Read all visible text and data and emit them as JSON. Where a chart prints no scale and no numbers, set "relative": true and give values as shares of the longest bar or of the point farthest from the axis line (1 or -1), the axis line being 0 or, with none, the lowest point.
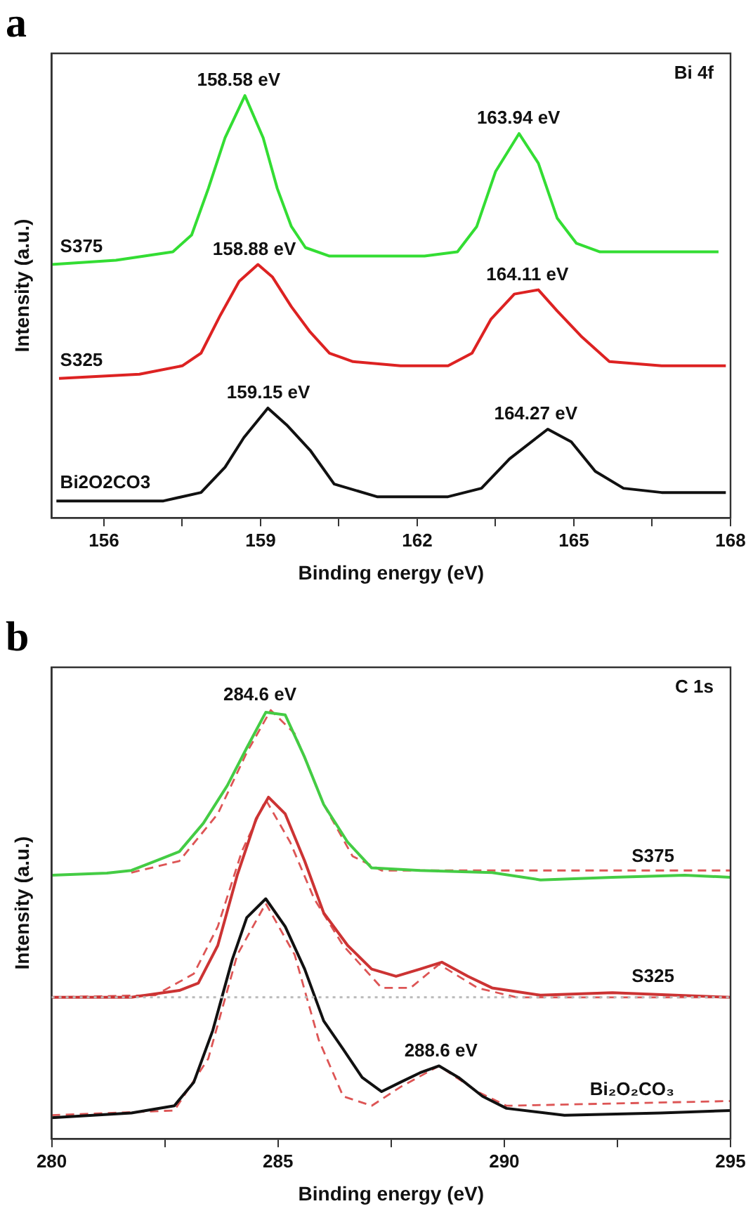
{
  "chart_data": [
    {
      "type": "line",
      "title": "a",
      "xlabel": "Binding energy (eV)",
      "ylabel": "Intensity (a.u.)",
      "relative": true,
      "xlim": [
        155,
        168
      ],
      "xticks": [
        156,
        {
          "value": 157.5,
          "label": null
        },
        159,
        {
          "value": 160.5,
          "label": null
        },
        162,
        {
          "value": 163.5,
          "label": null
        },
        165,
        {
          "value": 166.5,
          "label": null
        },
        168
      ],
      "grid": false,
      "legend": false,
      "marker": "none",
      "line_style": "solid",
      "annotations": [
        "Bi 4f",
        {
          "text": "158.58 eV",
          "x": 158.58,
          "y": 1.0
        },
        {
          "text": "163.94 eV",
          "x": 163.94,
          "y": 0.91
        },
        {
          "text": "158.88 eV",
          "x": 158.88,
          "y": 0.6
        },
        {
          "text": "164.11 eV",
          "x": 164.11,
          "y": 0.54
        },
        {
          "text": "159.15 eV",
          "x": 159.15,
          "y": 0.26
        },
        {
          "text": "164.27 eV",
          "x": 164.27,
          "y": 0.21
        }
      ],
      "series": [
        {
          "name": "S375",
          "color": "#33dd33",
          "x": [
            155,
            156.23,
            157.32,
            157.68,
            158,
            158.32,
            158.7,
            159.05,
            159.32,
            159.59,
            159.86,
            160.32,
            161.23,
            162.14,
            162.77,
            163.14,
            163.5,
            163.95,
            164.32,
            164.68,
            165.05,
            165.5,
            166.68,
            167.77
          ],
          "values": [
            0.6,
            0.61,
            0.63,
            0.67,
            0.78,
            0.9,
            1.0,
            0.9,
            0.78,
            0.69,
            0.64,
            0.62,
            0.62,
            0.62,
            0.63,
            0.69,
            0.82,
            0.91,
            0.84,
            0.71,
            0.65,
            0.63,
            0.63,
            0.63
          ]
        },
        {
          "name": "S325",
          "color": "#dd2222",
          "x": [
            155.14,
            156.68,
            157.5,
            157.86,
            158.23,
            158.59,
            158.95,
            159.23,
            159.59,
            159.95,
            160.32,
            160.77,
            161.68,
            162.59,
            163.05,
            163.41,
            163.86,
            164.32,
            164.68,
            165.14,
            165.68,
            166.68,
            167.91
          ],
          "values": [
            0.33,
            0.34,
            0.36,
            0.39,
            0.48,
            0.56,
            0.6,
            0.57,
            0.5,
            0.44,
            0.39,
            0.37,
            0.36,
            0.36,
            0.39,
            0.47,
            0.53,
            0.54,
            0.49,
            0.43,
            0.37,
            0.36,
            0.36
          ]
        },
        {
          "name": "Bi2O2CO3",
          "color": "#111111",
          "x": [
            155.09,
            157.14,
            157.86,
            158.32,
            158.68,
            159.14,
            159.5,
            159.95,
            160.41,
            161.23,
            162.59,
            163.23,
            163.77,
            164.5,
            164.95,
            165.41,
            165.95,
            166.68,
            167.91
          ],
          "values": [
            0.04,
            0.04,
            0.06,
            0.12,
            0.19,
            0.26,
            0.22,
            0.16,
            0.08,
            0.05,
            0.05,
            0.07,
            0.14,
            0.21,
            0.18,
            0.11,
            0.07,
            0.06,
            0.06
          ]
        }
      ]
    },
    {
      "type": "line",
      "title": "b",
      "xlabel": "Binding energy (eV)",
      "ylabel": "Intensity (a.u.)",
      "relative": true,
      "xlim": [
        280,
        295
      ],
      "xticks": [
        280,
        {
          "value": 282.5,
          "label": null
        },
        285,
        {
          "value": 287.5,
          "label": null
        },
        290,
        {
          "value": 292.5,
          "label": null
        },
        295
      ],
      "grid": false,
      "legend": false,
      "marker": "none",
      "line_style": "solid",
      "annotations": [
        "C 1s",
        {
          "text": "284.6 eV",
          "x": 284.6,
          "y": 1.0
        },
        {
          "text": "288.6 eV",
          "x": 288.6,
          "y": 0.17
        }
      ],
      "ref_lines": [
        {
          "axis": "y",
          "value": 0.33,
          "color": "#bbbbbb",
          "line_style": "dotted"
        }
      ],
      "series": [
        {
          "name": "S375",
          "color": "#44cc44",
          "x": [
            280,
            281.22,
            281.76,
            282.29,
            282.82,
            283.35,
            283.88,
            284.31,
            284.73,
            285.16,
            285.59,
            286.01,
            286.54,
            287.07,
            288.14,
            289.73,
            290.8,
            292.39,
            293.99,
            295
          ],
          "values": [
            0.615,
            0.62,
            0.626,
            0.648,
            0.67,
            0.736,
            0.824,
            0.912,
            0.995,
            0.989,
            0.89,
            0.78,
            0.692,
            0.632,
            0.626,
            0.621,
            0.604,
            0.61,
            0.615,
            0.61
          ]
        },
        {
          "color": "#dd5555",
          "line_style": "dashed",
          "x": [
            281.76,
            282.82,
            283.67,
            284.31,
            284.84,
            285.37,
            286.01,
            286.65,
            287.29,
            295
          ],
          "values": [
            0.621,
            0.648,
            0.758,
            0.901,
            1.0,
            0.945,
            0.78,
            0.659,
            0.626,
            0.626
          ]
        },
        {
          "name": "S325",
          "color": "#cc3333",
          "x": [
            280,
            281.76,
            282.82,
            283.24,
            283.67,
            284.1,
            284.52,
            284.79,
            285.16,
            285.59,
            286.01,
            286.54,
            287.07,
            287.61,
            288.14,
            288.62,
            289.2,
            289.73,
            290.8,
            292.39,
            295
          ],
          "values": [
            0.33,
            0.33,
            0.346,
            0.363,
            0.451,
            0.615,
            0.747,
            0.797,
            0.758,
            0.648,
            0.527,
            0.451,
            0.396,
            0.379,
            0.396,
            0.412,
            0.379,
            0.352,
            0.335,
            0.341,
            0.33
          ]
        },
        {
          "color": "#dd5555",
          "line_style": "dashed",
          "x": [
            280,
            282.29,
            283.14,
            283.67,
            284.2,
            284.73,
            285.27,
            285.8,
            286.44,
            287.29,
            287.93,
            288.56,
            289.41,
            290.27,
            295
          ],
          "values": [
            0.33,
            0.335,
            0.385,
            0.495,
            0.67,
            0.791,
            0.692,
            0.56,
            0.451,
            0.352,
            0.352,
            0.407,
            0.352,
            0.33,
            0.33
          ]
        },
        {
          "name": "Bi₂O₂CO₃",
          "color": "#111111",
          "x": [
            280,
            281.76,
            282.71,
            283.14,
            283.56,
            283.99,
            284.31,
            284.73,
            285.16,
            285.59,
            286.01,
            286.44,
            286.86,
            287.29,
            287.71,
            288.14,
            288.56,
            288.99,
            289.52,
            290.05,
            291.33,
            293.46,
            295
          ],
          "values": [
            0.049,
            0.06,
            0.077,
            0.132,
            0.253,
            0.418,
            0.516,
            0.56,
            0.495,
            0.396,
            0.275,
            0.209,
            0.143,
            0.11,
            0.132,
            0.154,
            0.17,
            0.143,
            0.099,
            0.071,
            0.055,
            0.06,
            0.066
          ]
        },
        {
          "color": "#dd5555",
          "line_style": "dashed",
          "x": [
            280,
            282.71,
            283.46,
            284.1,
            284.73,
            285.37,
            285.9,
            286.44,
            287.07,
            287.71,
            288.56,
            289.41,
            290.05,
            295
          ],
          "values": [
            0.055,
            0.066,
            0.187,
            0.429,
            0.549,
            0.429,
            0.231,
            0.099,
            0.077,
            0.121,
            0.17,
            0.11,
            0.077,
            0.088
          ]
        }
      ]
    }
  ]
}
